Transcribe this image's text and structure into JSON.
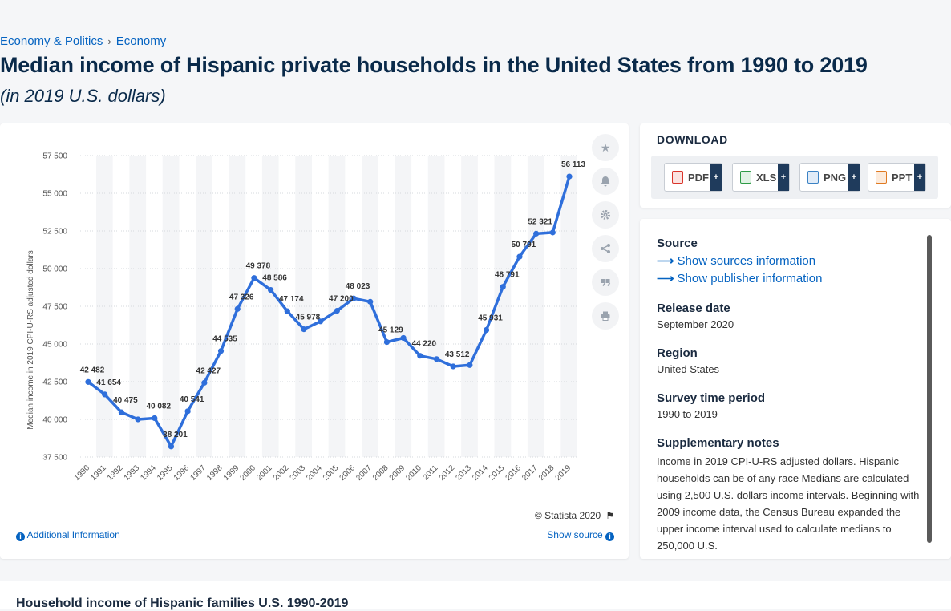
{
  "breadcrumb": {
    "items": [
      "Economy & Politics",
      "Economy"
    ],
    "separator": "›"
  },
  "title": "Median income of Hispanic private households in the United States from 1990 to 2019",
  "subtitle": "(in 2019 U.S. dollars)",
  "chart_data": {
    "type": "line",
    "title": "",
    "xlabel": "",
    "ylabel": "Median income in 2019 CPI-U-RS adjusted dollars",
    "ylim": [
      37500,
      57500
    ],
    "yticks": [
      37500,
      40000,
      42500,
      45000,
      47500,
      50000,
      52500,
      55000,
      57500
    ],
    "ytick_labels": [
      "37 500",
      "40 000",
      "42 500",
      "45 000",
      "47 500",
      "50 000",
      "52 500",
      "55 000",
      "57 500"
    ],
    "grid": true,
    "categories": [
      "1990",
      "1991",
      "1992",
      "1993",
      "1994",
      "1995",
      "1996",
      "1997",
      "1998",
      "1999",
      "2000",
      "2001",
      "2002",
      "2003",
      "2004",
      "2005",
      "2006",
      "2007",
      "2008",
      "2009",
      "2010",
      "2011",
      "2012",
      "2013",
      "2014",
      "2015",
      "2016",
      "2017",
      "2018",
      "2019"
    ],
    "values": [
      42482,
      41654,
      40475,
      40000,
      40082,
      38201,
      40541,
      42427,
      44535,
      47326,
      49378,
      48586,
      47174,
      45978,
      46500,
      47200,
      48023,
      47800,
      45129,
      45400,
      44220,
      44000,
      43512,
      43600,
      45931,
      48791,
      50791,
      52321,
      52400,
      56113
    ],
    "labels": [
      {
        "index": 0,
        "text": "42 482"
      },
      {
        "index": 1,
        "text": "41 654"
      },
      {
        "index": 2,
        "text": "40 475"
      },
      {
        "index": 4,
        "text": "40 082"
      },
      {
        "index": 5,
        "text": "38 201"
      },
      {
        "index": 6,
        "text": "40 541"
      },
      {
        "index": 7,
        "text": "42 427"
      },
      {
        "index": 8,
        "text": "44 535"
      },
      {
        "index": 9,
        "text": "47 326"
      },
      {
        "index": 10,
        "text": "49 378"
      },
      {
        "index": 11,
        "text": "48 586"
      },
      {
        "index": 12,
        "text": "47 174"
      },
      {
        "index": 13,
        "text": "45 978"
      },
      {
        "index": 15,
        "text": "47 200"
      },
      {
        "index": 16,
        "text": "48 023"
      },
      {
        "index": 18,
        "text": "45 129"
      },
      {
        "index": 20,
        "text": "44 220"
      },
      {
        "index": 22,
        "text": "43 512"
      },
      {
        "index": 24,
        "text": "45 931"
      },
      {
        "index": 25,
        "text": "48 791"
      },
      {
        "index": 26,
        "text": "50 791"
      },
      {
        "index": 27,
        "text": "52 321"
      },
      {
        "index": 29,
        "text": "56 113"
      }
    ],
    "line_color": "#2f6fdb"
  },
  "chart_footer": {
    "copyright": "© Statista 2020",
    "additional_info": "Additional Information",
    "show_source": "Show source"
  },
  "tools": [
    "star-icon",
    "bell-icon",
    "gear-icon",
    "share-icon",
    "quote-icon",
    "print-icon"
  ],
  "download": {
    "title": "DOWNLOAD",
    "buttons": [
      {
        "label": "PDF",
        "color": "#d9342b"
      },
      {
        "label": "XLS",
        "color": "#2e9b46"
      },
      {
        "label": "PNG",
        "color": "#3b82c4"
      },
      {
        "label": "PPT",
        "color": "#e07a22"
      }
    ],
    "plus": "+"
  },
  "info": {
    "source_heading": "Source",
    "show_sources": "Show sources information",
    "show_publisher": "Show publisher information",
    "release_heading": "Release date",
    "release_value": "September 2020",
    "region_heading": "Region",
    "region_value": "United States",
    "survey_heading": "Survey time period",
    "survey_value": "1990 to 2019",
    "notes_heading": "Supplementary notes",
    "notes_value": "Income in 2019 CPI-U-RS adjusted dollars. Hispanic households can be of any race Medians are calculated using 2,500 U.S. dollars income intervals. Beginning with 2009 income data, the Census Bureau expanded the upper income interval used to calculate medians to 250,000 U.S."
  },
  "related": {
    "title": "Household income of Hispanic families U.S. 1990-2019"
  }
}
